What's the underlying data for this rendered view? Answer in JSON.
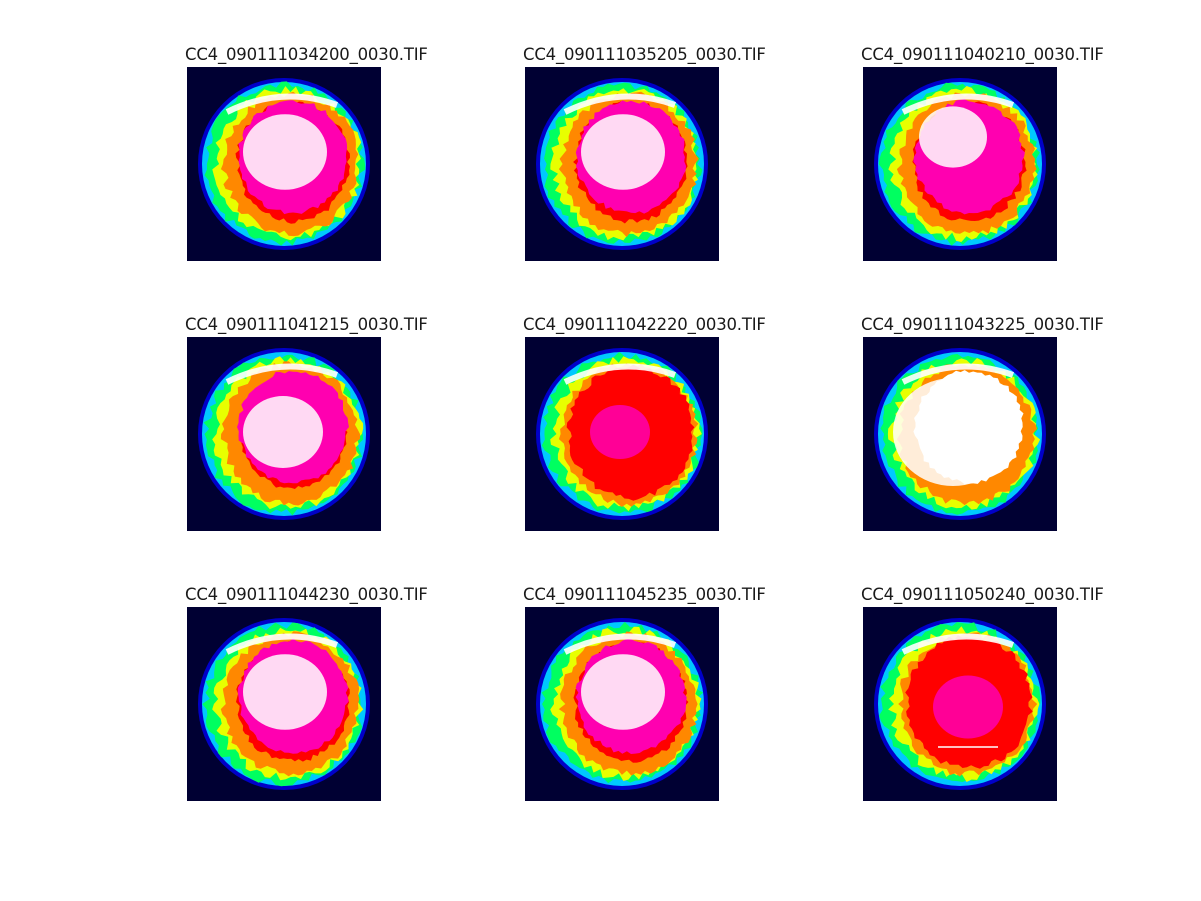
{
  "figure": {
    "panels": [
      {
        "title": "CC4_090111034200_0030.TIF",
        "variant": "bright_core"
      },
      {
        "title": "CC4_090111035205_0030.TIF",
        "variant": "bright_core"
      },
      {
        "title": "CC4_090111040210_0030.TIF",
        "variant": "bright_streaks"
      },
      {
        "title": "CC4_090111041215_0030.TIF",
        "variant": "white_center"
      },
      {
        "title": "CC4_090111042220_0030.TIF",
        "variant": "red_dominant"
      },
      {
        "title": "CC4_090111043225_0030.TIF",
        "variant": "saturated_white"
      },
      {
        "title": "CC4_090111044230_0030.TIF",
        "variant": "bright_core"
      },
      {
        "title": "CC4_090111045235_0030.TIF",
        "variant": "bright_core"
      },
      {
        "title": "CC4_090111050240_0030.TIF",
        "variant": "red_dominant_line"
      }
    ],
    "colormap": [
      "#000033",
      "#0000c8",
      "#00c8ff",
      "#00ff60",
      "#e8ff00",
      "#ff8800",
      "#ff0000",
      "#ff00b0",
      "#ffffff"
    ],
    "background_color": "#ffffff"
  }
}
